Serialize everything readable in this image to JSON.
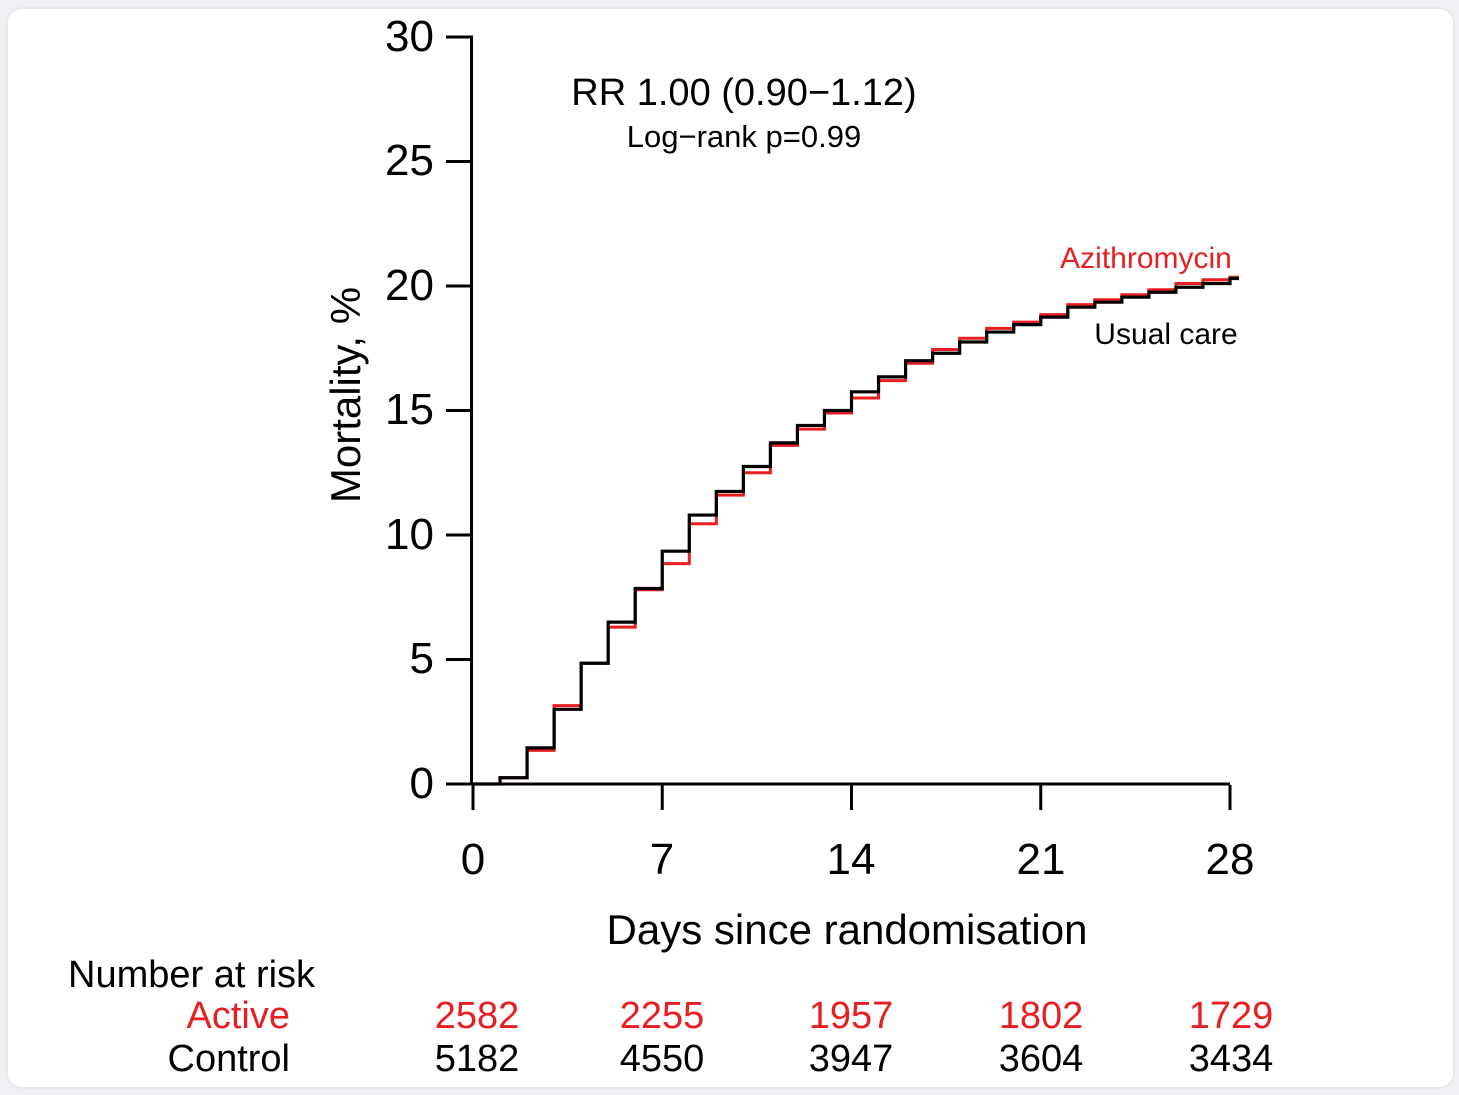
{
  "colors": {
    "accent_red": "#e81f22",
    "curve_black": "#000000",
    "background": "#ffffff"
  },
  "chart_data": {
    "type": "line",
    "subtype": "kaplan-meier-step",
    "title": "",
    "xlabel": "Days since randomisation",
    "ylabel": "Mortality, %",
    "xlim": [
      0,
      28
    ],
    "ylim": [
      0,
      30
    ],
    "grid": false,
    "x_ticks": [
      0,
      7,
      14,
      21,
      28
    ],
    "y_ticks": [
      0,
      5,
      10,
      15,
      20,
      25,
      30
    ],
    "x_tick_labels": [
      "0",
      "7",
      "14",
      "21",
      "28"
    ],
    "y_tick_labels": [
      "0",
      "5",
      "10",
      "15",
      "20",
      "25",
      "30"
    ],
    "annotations": [
      "RR 1.00 (0.90−1.12)",
      "Log−rank p=0.99"
    ],
    "legend_position": "labels-near-curve-end",
    "x": [
      0,
      1,
      2,
      3,
      4,
      5,
      6,
      7,
      8,
      9,
      10,
      11,
      12,
      13,
      14,
      15,
      16,
      17,
      18,
      19,
      20,
      21,
      22,
      23,
      24,
      25,
      26,
      27,
      28
    ],
    "series": [
      {
        "name": "Azithromycin",
        "color": "#e81f22",
        "values": [
          0,
          0.25,
          1.35,
          3.15,
          4.85,
          6.3,
          7.8,
          8.85,
          10.45,
          11.6,
          12.5,
          13.6,
          14.25,
          14.9,
          15.5,
          16.2,
          16.9,
          17.45,
          17.9,
          18.3,
          18.55,
          18.85,
          19.25,
          19.45,
          19.65,
          19.85,
          20.1,
          20.25,
          20.35
        ]
      },
      {
        "name": "Usual care",
        "color": "#000000",
        "values": [
          0,
          0.25,
          1.45,
          3.0,
          4.85,
          6.5,
          7.85,
          9.35,
          10.8,
          11.75,
          12.75,
          13.7,
          14.4,
          15.0,
          15.75,
          16.35,
          17.0,
          17.3,
          17.75,
          18.15,
          18.45,
          18.75,
          19.15,
          19.35,
          19.55,
          19.75,
          19.95,
          20.1,
          20.3
        ]
      }
    ]
  },
  "risk_table": {
    "title": "Number at risk",
    "time_points": [
      "0",
      "7",
      "14",
      "21",
      "28"
    ],
    "rows": [
      {
        "label": "Active",
        "color": "#e81f22",
        "values": [
          "2582",
          "2255",
          "1957",
          "1802",
          "1729"
        ]
      },
      {
        "label": "Control",
        "color": "#000000",
        "values": [
          "5182",
          "4550",
          "3947",
          "3604",
          "3434"
        ]
      }
    ]
  }
}
